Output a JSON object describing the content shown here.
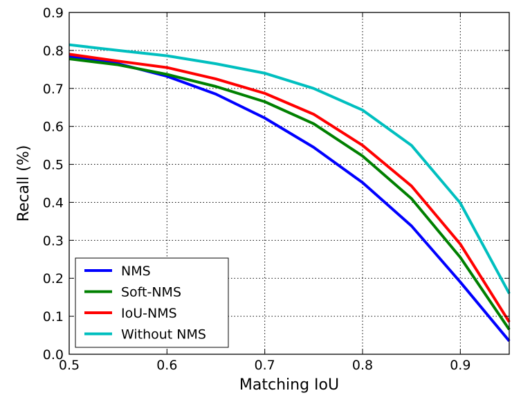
{
  "chart_data": {
    "type": "line",
    "title": "",
    "xlabel": "Matching IoU",
    "ylabel": "Recall (%)",
    "xlim": [
      0.5,
      0.95
    ],
    "ylim": [
      0.0,
      0.9
    ],
    "grid": true,
    "legend_position": "lower-left",
    "x": [
      0.5,
      0.55,
      0.6,
      0.65,
      0.7,
      0.75,
      0.8,
      0.85,
      0.9,
      0.95
    ],
    "x_ticks": [
      "0.5",
      "0.6",
      "0.7",
      "0.8",
      "0.9"
    ],
    "y_ticks": [
      "0.0",
      "0.1",
      "0.2",
      "0.3",
      "0.4",
      "0.5",
      "0.6",
      "0.7",
      "0.8",
      "0.9"
    ],
    "series": [
      {
        "name": "NMS",
        "color": "#0000ff",
        "values": [
          0.785,
          0.765,
          0.732,
          0.685,
          0.622,
          0.545,
          0.452,
          0.338,
          0.19,
          0.035
        ]
      },
      {
        "name": "Soft-NMS",
        "color": "#008000",
        "values": [
          0.778,
          0.762,
          0.737,
          0.705,
          0.665,
          0.607,
          0.522,
          0.41,
          0.255,
          0.065
        ]
      },
      {
        "name": "IoU-NMS",
        "color": "#ff0000",
        "values": [
          0.79,
          0.772,
          0.755,
          0.725,
          0.687,
          0.632,
          0.55,
          0.443,
          0.29,
          0.085
        ]
      },
      {
        "name": "Without NMS",
        "color": "#00bfbf",
        "values": [
          0.815,
          0.8,
          0.786,
          0.765,
          0.74,
          0.7,
          0.643,
          0.55,
          0.398,
          0.16
        ]
      }
    ]
  }
}
